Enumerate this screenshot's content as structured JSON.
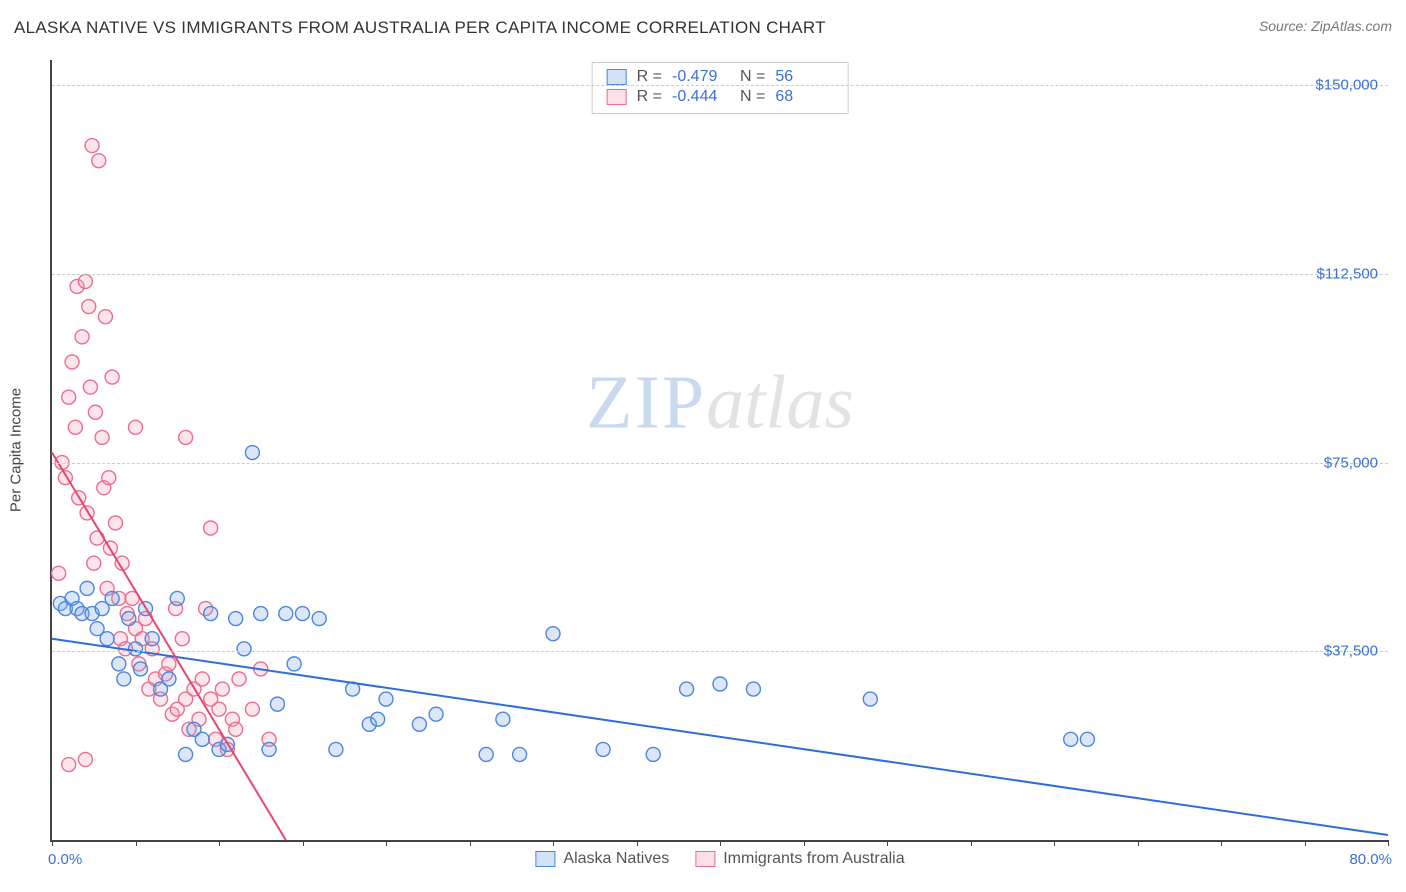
{
  "header": {
    "title": "ALASKA NATIVE VS IMMIGRANTS FROM AUSTRALIA PER CAPITA INCOME CORRELATION CHART",
    "source_prefix": "Source: ",
    "source_site": "ZipAtlas.com"
  },
  "watermark": {
    "a": "ZIP",
    "b": "atlas"
  },
  "chart": {
    "type": "scatter",
    "xlim": [
      0,
      80
    ],
    "ylim": [
      0,
      155000
    ],
    "x_min_label": "0.0%",
    "x_max_label": "80.0%",
    "y_ticks": [
      {
        "v": 37500,
        "label": "$37,500"
      },
      {
        "v": 75000,
        "label": "$75,000"
      },
      {
        "v": 112500,
        "label": "$112,500"
      },
      {
        "v": 150000,
        "label": "$150,000"
      }
    ],
    "x_tick_step": 5,
    "ylabel": "Per Capita Income",
    "background_color": "#ffffff",
    "grid_color": "#cccccc",
    "marker_radius": 7,
    "marker_fill_opacity": 0.28,
    "marker_stroke_width": 1.4,
    "line_width": 2,
    "series": [
      {
        "key": "alaska",
        "label": "Alaska Natives",
        "fill": "#7fa8e8",
        "stroke": "#4d86dd",
        "line_color": "#2e6fd6",
        "R": "-0.479",
        "N": "56",
        "regression": {
          "x1": 0,
          "y1": 40000,
          "x2": 80,
          "y2": 1000
        },
        "points": [
          [
            0.5,
            47000
          ],
          [
            0.8,
            46000
          ],
          [
            1.2,
            48000
          ],
          [
            1.5,
            46000
          ],
          [
            1.8,
            45000
          ],
          [
            2.1,
            50000
          ],
          [
            2.4,
            45000
          ],
          [
            2.7,
            42000
          ],
          [
            3.0,
            46000
          ],
          [
            3.3,
            40000
          ],
          [
            3.6,
            48000
          ],
          [
            4.0,
            35000
          ],
          [
            4.3,
            32000
          ],
          [
            4.6,
            44000
          ],
          [
            5.0,
            38000
          ],
          [
            5.3,
            34000
          ],
          [
            5.6,
            46000
          ],
          [
            6.0,
            40000
          ],
          [
            6.5,
            30000
          ],
          [
            7.0,
            32000
          ],
          [
            7.5,
            48000
          ],
          [
            8.0,
            17000
          ],
          [
            8.5,
            22000
          ],
          [
            9.0,
            20000
          ],
          [
            9.5,
            45000
          ],
          [
            10.0,
            18000
          ],
          [
            10.5,
            19000
          ],
          [
            11.0,
            44000
          ],
          [
            11.5,
            38000
          ],
          [
            12.0,
            77000
          ],
          [
            12.5,
            45000
          ],
          [
            13.0,
            18000
          ],
          [
            13.5,
            27000
          ],
          [
            14.0,
            45000
          ],
          [
            14.5,
            35000
          ],
          [
            15.0,
            45000
          ],
          [
            16.0,
            44000
          ],
          [
            17.0,
            18000
          ],
          [
            18.0,
            30000
          ],
          [
            19.0,
            23000
          ],
          [
            19.5,
            24000
          ],
          [
            20.0,
            28000
          ],
          [
            22.0,
            23000
          ],
          [
            23.0,
            25000
          ],
          [
            26.0,
            17000
          ],
          [
            27.0,
            24000
          ],
          [
            28.0,
            17000
          ],
          [
            30.0,
            41000
          ],
          [
            33.0,
            18000
          ],
          [
            36.0,
            17000
          ],
          [
            38.0,
            30000
          ],
          [
            40.0,
            31000
          ],
          [
            42.0,
            30000
          ],
          [
            49.0,
            28000
          ],
          [
            61.0,
            20000
          ],
          [
            62.0,
            20000
          ]
        ]
      },
      {
        "key": "australia",
        "label": "Immigrants from Australia",
        "fill": "#f5a3b8",
        "stroke": "#eb6e8f",
        "line_color": "#e8466f",
        "R": "-0.444",
        "N": "68",
        "regression": {
          "x1": 0,
          "y1": 77000,
          "x2": 14,
          "y2": 0
        },
        "points": [
          [
            0.4,
            53000
          ],
          [
            0.6,
            75000
          ],
          [
            0.8,
            72000
          ],
          [
            1.0,
            88000
          ],
          [
            1.2,
            95000
          ],
          [
            1.4,
            82000
          ],
          [
            1.5,
            110000
          ],
          [
            1.6,
            68000
          ],
          [
            1.8,
            100000
          ],
          [
            2.0,
            111000
          ],
          [
            2.1,
            65000
          ],
          [
            2.2,
            106000
          ],
          [
            2.3,
            90000
          ],
          [
            2.4,
            138000
          ],
          [
            2.5,
            55000
          ],
          [
            2.6,
            85000
          ],
          [
            2.7,
            60000
          ],
          [
            2.8,
            135000
          ],
          [
            3.0,
            80000
          ],
          [
            3.1,
            70000
          ],
          [
            3.2,
            104000
          ],
          [
            3.3,
            50000
          ],
          [
            3.4,
            72000
          ],
          [
            3.5,
            58000
          ],
          [
            3.6,
            92000
          ],
          [
            3.8,
            63000
          ],
          [
            4.0,
            48000
          ],
          [
            4.1,
            40000
          ],
          [
            4.2,
            55000
          ],
          [
            4.4,
            38000
          ],
          [
            4.5,
            45000
          ],
          [
            4.8,
            48000
          ],
          [
            5.0,
            42000
          ],
          [
            5.0,
            82000
          ],
          [
            5.2,
            35000
          ],
          [
            5.4,
            40000
          ],
          [
            5.6,
            44000
          ],
          [
            5.8,
            30000
          ],
          [
            6.0,
            38000
          ],
          [
            6.2,
            32000
          ],
          [
            6.5,
            28000
          ],
          [
            6.8,
            33000
          ],
          [
            7.0,
            35000
          ],
          [
            7.2,
            25000
          ],
          [
            7.4,
            46000
          ],
          [
            7.5,
            26000
          ],
          [
            7.8,
            40000
          ],
          [
            8.0,
            28000
          ],
          [
            8.0,
            80000
          ],
          [
            8.2,
            22000
          ],
          [
            8.5,
            30000
          ],
          [
            8.8,
            24000
          ],
          [
            9.0,
            32000
          ],
          [
            9.2,
            46000
          ],
          [
            9.5,
            28000
          ],
          [
            9.5,
            62000
          ],
          [
            9.8,
            20000
          ],
          [
            10.0,
            26000
          ],
          [
            10.2,
            30000
          ],
          [
            10.5,
            18000
          ],
          [
            10.8,
            24000
          ],
          [
            11.0,
            22000
          ],
          [
            11.2,
            32000
          ],
          [
            12.0,
            26000
          ],
          [
            12.5,
            34000
          ],
          [
            13.0,
            20000
          ],
          [
            1.0,
            15000
          ],
          [
            2.0,
            16000
          ]
        ]
      }
    ]
  },
  "legend_top": {
    "R_label": "R =",
    "N_label": "N ="
  }
}
